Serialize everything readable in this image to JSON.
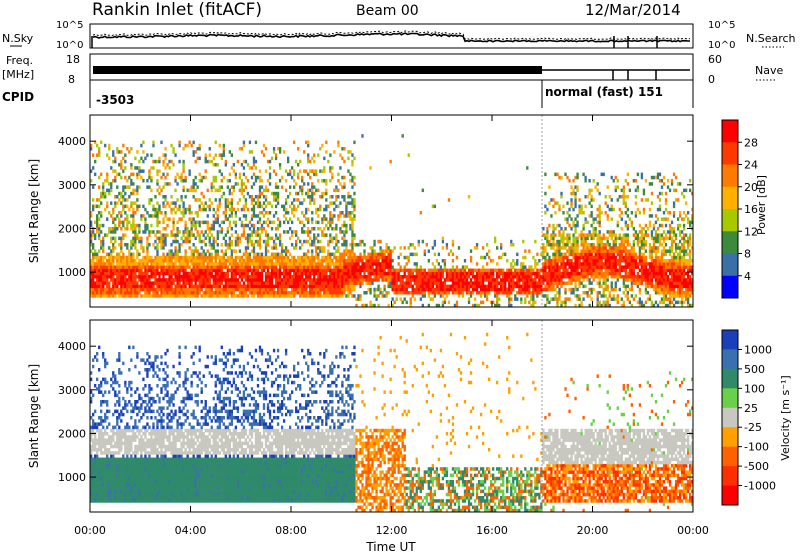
{
  "header": {
    "station": "Rankin Inlet (fitACF)",
    "beam": "Beam 00",
    "date": "12/Mar/2014"
  },
  "top_panels": {
    "nsky_label": "N.Sky",
    "nsky_tick_top": "10^5",
    "nsky_tick_bottom": "10^0",
    "nsearch_label": "N.Search",
    "freq_label": "Freq.",
    "freq_unit": "[MHz]",
    "freq_tick_top": "18",
    "freq_tick_bottom": "8",
    "nave_tick_top": "60",
    "nave_tick_bottom": "0",
    "nave_label": "Nave",
    "cpid_label": "CPID",
    "cpid_value_1": "-3503",
    "cpid_value_2": "normal (fast) 151"
  },
  "colorbars": {
    "power": {
      "label": "Power [dB]",
      "ticks": [
        "28",
        "24",
        "20",
        "16",
        "12",
        "8",
        "4"
      ],
      "colors": [
        "#ff0000",
        "#ff3a00",
        "#ff7a00",
        "#ffb000",
        "#a8c800",
        "#3c8a3c",
        "#3a6fa8",
        "#0000ff"
      ]
    },
    "velocity": {
      "label": "Velocity [m s⁻¹]",
      "ticks": [
        "1000",
        "500",
        "100",
        "25",
        "-25",
        "-100",
        "-500",
        "-1000"
      ],
      "colors": [
        "#1a3fb8",
        "#3a6fb0",
        "#2f8a6a",
        "#6ad04a",
        "#c8c8c0",
        "#ffa000",
        "#ff6000",
        "#ff3000",
        "#ff0000"
      ]
    }
  },
  "chart_data": [
    {
      "type": "heatmap",
      "panel": "power",
      "ylabel": "Slant Range [km]",
      "ylim": [
        200,
        4600
      ],
      "yticks": [
        "1000",
        "2000",
        "3000",
        "4000"
      ],
      "xlim": [
        0,
        24
      ],
      "colorscale": "Power [dB]"
    },
    {
      "type": "heatmap",
      "panel": "velocity",
      "ylabel": "Slant Range [km]",
      "ylim": [
        200,
        4600
      ],
      "yticks": [
        "1000",
        "2000",
        "3000",
        "4000"
      ],
      "xlim": [
        0,
        24
      ],
      "colorscale": "Velocity [m s⁻¹]",
      "xlabel": "Time UT",
      "xticks": [
        "00:00",
        "04:00",
        "08:00",
        "12:00",
        "16:00",
        "20:00",
        "00:00"
      ]
    }
  ]
}
